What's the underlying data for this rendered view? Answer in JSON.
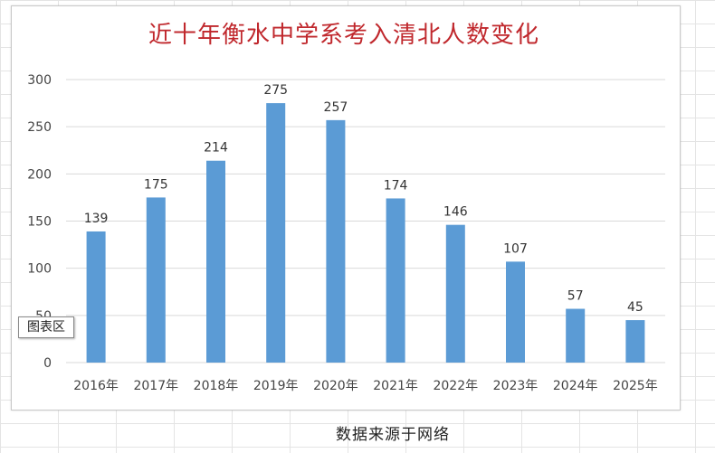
{
  "chart_area_tooltip": "图表区",
  "source_note": "数据来源于网络",
  "colors": {
    "bar": "#5b9bd5",
    "title": "#c0282d",
    "grid": "#d9d9d9"
  },
  "chart_data": {
    "type": "bar",
    "title": "近十年衡水中学系考入清北人数变化",
    "categories": [
      "2016年",
      "2017年",
      "2018年",
      "2019年",
      "2020年",
      "2021年",
      "2022年",
      "2023年",
      "2024年",
      "2025年"
    ],
    "values": [
      139,
      175,
      214,
      275,
      257,
      174,
      146,
      107,
      57,
      45
    ],
    "ylim": [
      0,
      300
    ],
    "yticks": [
      0,
      50,
      100,
      150,
      200,
      250,
      300
    ],
    "grid": true,
    "legend": "none",
    "xlabel": "",
    "ylabel": ""
  }
}
